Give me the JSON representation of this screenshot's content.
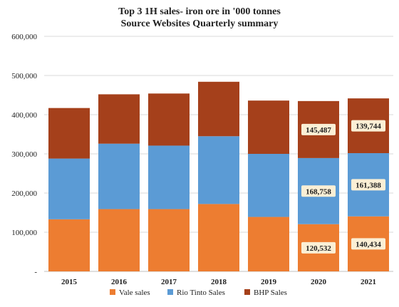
{
  "chart_data": {
    "type": "bar",
    "stacked": true,
    "title": "Top 3 1H sales- iron ore in '000 tonnes",
    "subtitle": "Source Websites Quarterly summary",
    "categories": [
      "2015",
      "2016",
      "2017",
      "2018",
      "2019",
      "2020",
      "2021"
    ],
    "series": [
      {
        "name": "Vale sales",
        "color": "#ED7D31",
        "values": [
          133000,
          159000,
          159000,
          172000,
          139000,
          120532,
          140434
        ]
      },
      {
        "name": "Rio Tinto Sales",
        "color": "#5B9BD5",
        "values": [
          155000,
          167000,
          162000,
          173000,
          161000,
          168758,
          161388
        ]
      },
      {
        "name": "BHP Sales",
        "color": "#A5401B",
        "values": [
          129000,
          126000,
          133000,
          139000,
          136000,
          145487,
          139744
        ]
      }
    ],
    "data_labels": [
      {
        "category": "2020",
        "series": "BHP Sales",
        "text": "145,487"
      },
      {
        "category": "2021",
        "series": "BHP Sales",
        "text": "139,744"
      },
      {
        "category": "2020",
        "series": "Rio Tinto Sales",
        "text": "168,758"
      },
      {
        "category": "2021",
        "series": "Rio Tinto Sales",
        "text": "161,388"
      },
      {
        "category": "2020",
        "series": "Vale sales",
        "text": "120,532"
      },
      {
        "category": "2021",
        "series": "Vale sales",
        "text": "140,434"
      }
    ],
    "y_ticks": [
      {
        "value": 0,
        "label": "-"
      },
      {
        "value": 100000,
        "label": "100,000"
      },
      {
        "value": 200000,
        "label": "200,000"
      },
      {
        "value": 300000,
        "label": "300,000"
      },
      {
        "value": 400000,
        "label": "400,000"
      },
      {
        "value": 500000,
        "label": "500,000"
      },
      {
        "value": 600000,
        "label": "600,000"
      }
    ],
    "ylim": [
      0,
      600000
    ],
    "grid": true,
    "legend_position": "bottom",
    "label_box_color": "#FBEFD5"
  }
}
